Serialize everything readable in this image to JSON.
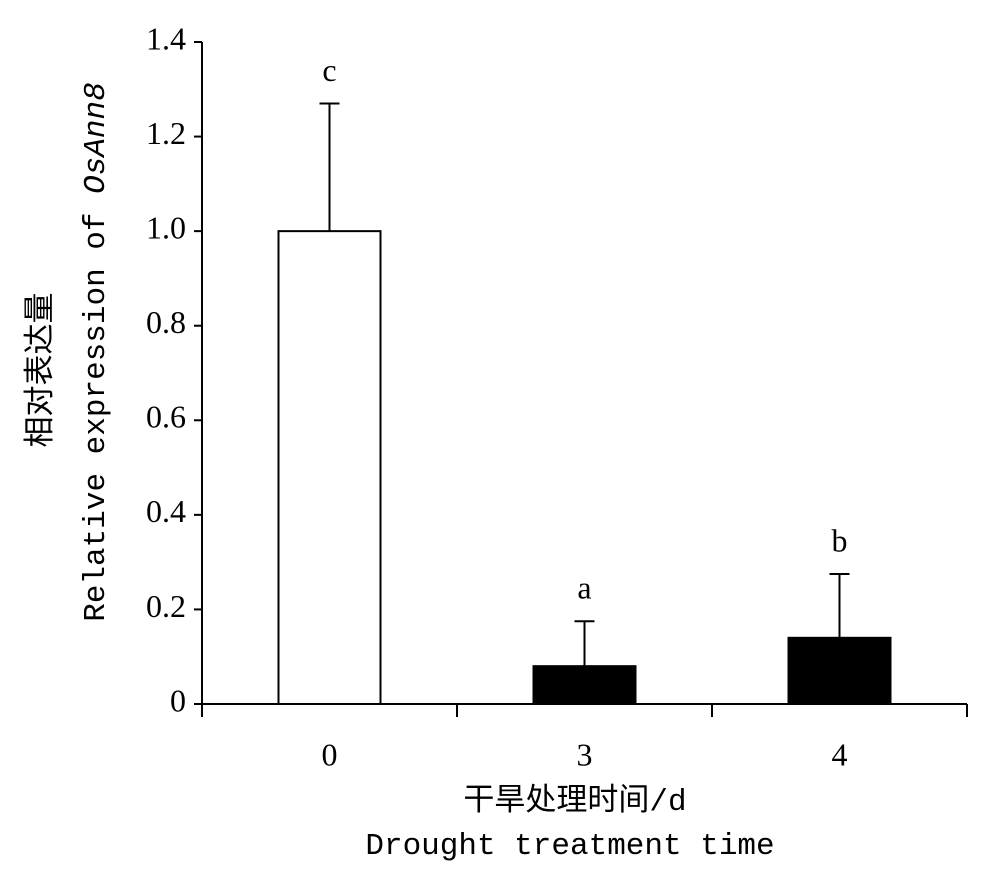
{
  "chart_data": {
    "type": "bar",
    "ylabel_cn": "相对表达量",
    "ylabel_en": "Relative expression of",
    "ylabel_gene": "OsAnn8",
    "xlabel_cn": "干旱处理时间/d",
    "xlabel_en": "Drought treatment time",
    "categories": [
      "0",
      "3",
      "4"
    ],
    "values": [
      1.0,
      0.08,
      0.14
    ],
    "errors": [
      0.27,
      0.095,
      0.135
    ],
    "significance": [
      "c",
      "a",
      "b"
    ],
    "colors": [
      "#ffffff",
      "#000000",
      "#000000"
    ],
    "ylim": [
      0,
      1.4
    ],
    "yticks": [
      0,
      0.2,
      0.4,
      0.6,
      0.8,
      {
        "value": 1,
        "label": "1.0"
      },
      1.2,
      1.4
    ],
    "grid": false
  }
}
